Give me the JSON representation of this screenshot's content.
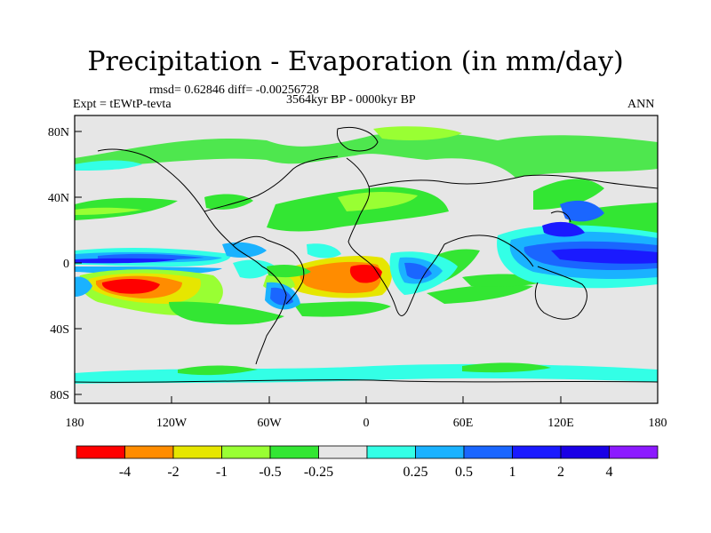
{
  "title": "Precipitation - Evaporation (in mm/day)",
  "stats_line": "rmsd= 0.62846  diff= -0.00256728",
  "experiment": "Expt = tEWtP-tevta",
  "period": "3564kyr BP - 0000kyr BP",
  "season": "ANN",
  "lat_ticks": [
    "80N",
    "40N",
    "0",
    "40S",
    "80S"
  ],
  "lon_ticks": [
    "180",
    "120W",
    "60W",
    "0",
    "60E",
    "120E",
    "180"
  ],
  "colorbar": {
    "colors": [
      "#ff0000",
      "#ff8c00",
      "#e6e600",
      "#99ff33",
      "#33e633",
      "#e6e6e6",
      "#33ffe6",
      "#1ab2ff",
      "#1a66ff",
      "#1a1aff",
      "#1a00e6",
      "#8c1aff"
    ],
    "labels": [
      "-4",
      "-2",
      "-1",
      "-0.5",
      "-0.25",
      "0.25",
      "0.5",
      "1",
      "2",
      "4"
    ]
  }
}
